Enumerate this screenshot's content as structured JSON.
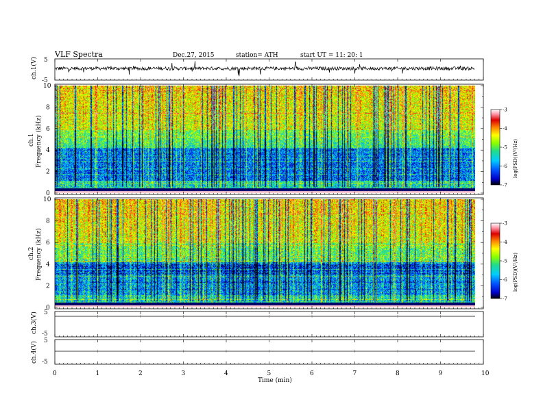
{
  "header": {
    "title": "VLF  Spectra",
    "date": "Dec.27, 2015",
    "station": "station= ATH",
    "start_ut": "start  UT  =    11: 20: 1"
  },
  "chart_data": [
    {
      "type": "line",
      "panel": "ch1-waveform",
      "ylabel": "ch.1(V)",
      "ylim": [
        -5,
        5
      ],
      "yticks": [
        "5",
        "-5"
      ],
      "baseline_value": 0.5,
      "color": "#000000"
    },
    {
      "type": "heatmap",
      "panel": "ch1-spectrogram",
      "ylabel_channel": "ch.1",
      "ylabel": "Frequency  (kHz)",
      "ylim": [
        0,
        10
      ],
      "yticks": [
        "0",
        "2",
        "4",
        "6",
        "8",
        "10"
      ],
      "colorbar": {
        "label": "log(PSD)(V²/Hz)",
        "range": [
          -7,
          -3
        ],
        "ticks": [
          "-3",
          "-4",
          "-5",
          "-6",
          "-7"
        ]
      },
      "colormap": [
        "#000000",
        "#0000cc",
        "#0055ff",
        "#00ccff",
        "#22dd88",
        "#88ff00",
        "#ffff00",
        "#ff8800",
        "#dd0000",
        "#ff99aa",
        "#ffffff"
      ]
    },
    {
      "type": "heatmap",
      "panel": "ch2-spectrogram",
      "ylabel_channel": "ch.2",
      "ylabel": "Frequency  (kHz)",
      "ylim": [
        0,
        10
      ],
      "yticks": [
        "0",
        "2",
        "4",
        "6",
        "8",
        "10"
      ],
      "colorbar": {
        "label": "log(PSD)(V²/Hz)",
        "range": [
          -7,
          -3
        ],
        "ticks": [
          "-3",
          "-4",
          "-5",
          "-6",
          "-7"
        ]
      }
    },
    {
      "type": "line",
      "panel": "ch3-waveform",
      "ylabel": "ch.3(V)",
      "ylim": [
        -5,
        5
      ],
      "yticks": [
        "5",
        "-5"
      ],
      "baseline_value": 0
    },
    {
      "type": "line",
      "panel": "ch4-waveform",
      "ylabel": "ch.4(V)",
      "ylim": [
        -5,
        5
      ],
      "yticks": [
        "5",
        "-5"
      ],
      "baseline_value": 0
    }
  ],
  "x_axis": {
    "label": "Time  (min)",
    "range": [
      0,
      10
    ],
    "ticks": [
      "0",
      "1",
      "2",
      "3",
      "4",
      "5",
      "6",
      "7",
      "8",
      "9",
      "10"
    ],
    "data_end": 9.8
  }
}
